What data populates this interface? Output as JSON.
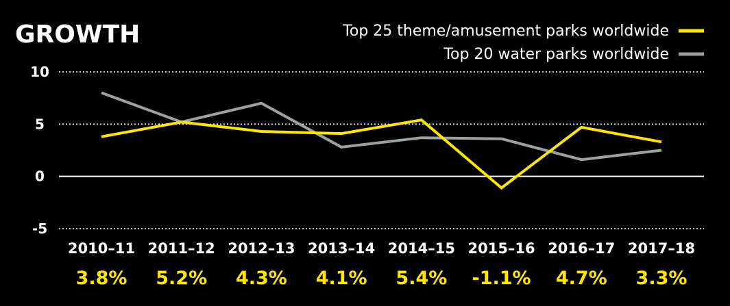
{
  "chart_data": {
    "type": "line",
    "title": "GROWTH",
    "categories": [
      "2010–11",
      "2011–12",
      "2012–13",
      "2013–14",
      "2014–15",
      "2015–16",
      "2016–17",
      "2017–18"
    ],
    "series": [
      {
        "name": "Top 25 theme/amusement parks worldwide",
        "color": "#ffe600",
        "values": [
          3.8,
          5.2,
          4.3,
          4.1,
          5.4,
          -1.1,
          4.7,
          3.3
        ]
      },
      {
        "name": "Top 20 water parks worldwide",
        "color": "#9ca39c",
        "values": [
          8.0,
          5.2,
          7.0,
          2.8,
          3.7,
          3.6,
          1.6,
          2.5
        ]
      }
    ],
    "data_labels": [
      "3.8%",
      "5.2%",
      "4.3%",
      "4.1%",
      "5.4%",
      "-1.1%",
      "4.7%",
      "3.3%"
    ],
    "data_label_color": "#ffe600",
    "yticks": [
      10,
      5,
      0,
      -5
    ],
    "ytick_labels": [
      "10",
      "5",
      "0",
      "-5"
    ],
    "ylim": [
      -5,
      10
    ],
    "grid": "dotted horizontal",
    "legend_position": "top-right",
    "background": "#000000",
    "zero_line_color": "#ffffff"
  }
}
